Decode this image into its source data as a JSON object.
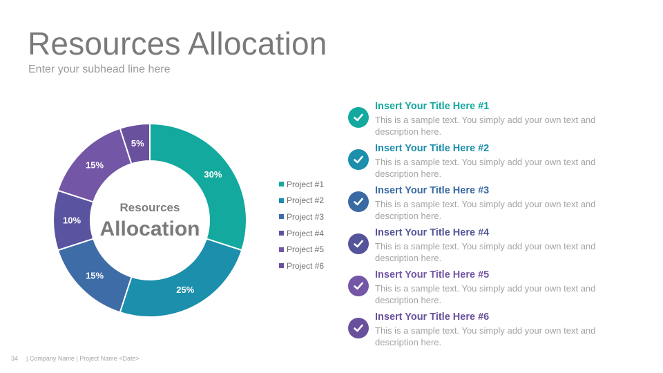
{
  "slide": {
    "title": "Resources Allocation",
    "subtitle": "Enter your subhead line here",
    "page_number": "34",
    "footer_text": "| Company Name | Project Name <Date>"
  },
  "donut": {
    "center_line1": "Resources",
    "center_line2": "Allocation"
  },
  "colors": {
    "title_gray": "#7a7a7a",
    "text_gray": "#a3a3a3"
  },
  "chart_data": {
    "type": "pie",
    "categories": [
      "Project #1",
      "Project #2",
      "Project #3",
      "Project #4",
      "Project #5",
      "Project #6"
    ],
    "values": [
      30,
      25,
      15,
      10,
      15,
      5
    ],
    "labels": [
      "30%",
      "25%",
      "15%",
      "10%",
      "15%",
      "5%"
    ],
    "colors": [
      "#13a99e",
      "#1b8fab",
      "#3e6ca7",
      "#5a54a0",
      "#7356a6",
      "#6a519e"
    ],
    "legend_position": "right"
  },
  "items": [
    {
      "title": "Insert Your Title Here #1",
      "text": "This is a sample text. You simply add your own text and description here.",
      "color": "#13a99e"
    },
    {
      "title": "Insert Your Title Here #2",
      "text": "This is a sample text. You simply add your own text and description here.",
      "color": "#1b8fab"
    },
    {
      "title": "Insert Your Title Here #3",
      "text": "This is a sample text. You simply add your own text and description here.",
      "color": "#3a6aa3"
    },
    {
      "title": "Insert Your Title Here #4",
      "text": "This is a sample text. You simply add your own text and description here.",
      "color": "#54549b"
    },
    {
      "title": "Insert Your Title Here #5",
      "text": "This is a sample text. You simply add your own text and description here.",
      "color": "#7356a6"
    },
    {
      "title": "Insert Your Title Here #6",
      "text": "This is a sample text. You simply add your own text and description here.",
      "color": "#68509c"
    }
  ],
  "icons": {
    "item_icon": "check-circle-icon"
  }
}
